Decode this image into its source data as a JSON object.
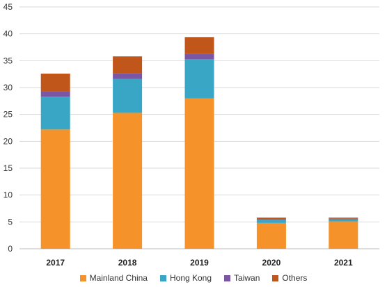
{
  "chart_data": {
    "type": "bar",
    "stacked": true,
    "categories": [
      "2017",
      "2018",
      "2019",
      "2020",
      "2021"
    ],
    "series": [
      {
        "name": "Mainland China",
        "color": "#f5922a",
        "values": [
          22.2,
          25.3,
          28.0,
          4.8,
          5.1
        ]
      },
      {
        "name": "Hong Kong",
        "color": "#3aa6c6",
        "values": [
          6.1,
          6.3,
          7.3,
          0.6,
          0.4
        ]
      },
      {
        "name": "Taiwan",
        "color": "#7a56a3",
        "values": [
          1.0,
          1.0,
          1.0,
          0.1,
          0.1
        ]
      },
      {
        "name": "Others",
        "color": "#c1561a",
        "values": [
          3.3,
          3.2,
          3.1,
          0.3,
          0.2
        ]
      }
    ],
    "yticks": [
      0,
      5,
      10,
      15,
      20,
      25,
      30,
      35,
      40,
      45
    ],
    "ylim": [
      0,
      45
    ],
    "grid": true,
    "legend_position": "bottom"
  }
}
